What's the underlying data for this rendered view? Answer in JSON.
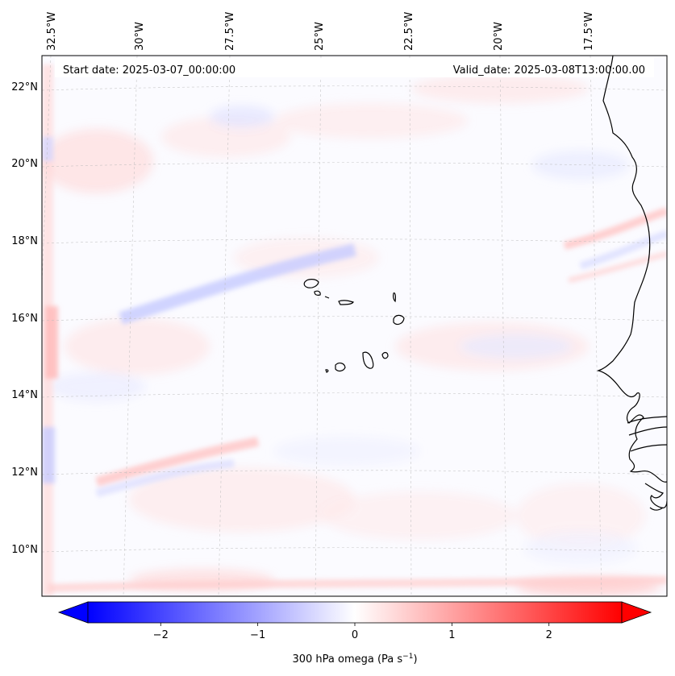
{
  "map": {
    "start_date_text": "Start date: 2025-03-07_00:00:00",
    "valid_date_text": "Valid_date: 2025-03-08T13:00:00.00",
    "lon_labels": [
      "32.5°W",
      "30°W",
      "27.5°W",
      "25°W",
      "22.5°W",
      "20°W",
      "17.5°W"
    ],
    "lat_labels": [
      "22°N",
      "20°N",
      "18°N",
      "16°N",
      "14°N",
      "12°N",
      "10°N"
    ],
    "lon_extent": [
      -33.0,
      -15.5
    ],
    "lat_extent": [
      8.9,
      22.8
    ],
    "field_name": "300 hPa omega",
    "coastline_color": "#000000",
    "gridline_color": "#bbbbbb"
  },
  "colorbar": {
    "label_main": "300 hPa omega (Pa s",
    "label_sup": "−1",
    "label_close": ")",
    "ticks": [
      "−2",
      "−1",
      "0",
      "1",
      "2"
    ],
    "tick_values": [
      -2,
      -1,
      0,
      1,
      2
    ],
    "range": [
      -2.75,
      2.75
    ],
    "colormap": "bwr",
    "color_low": "#0000ff",
    "color_mid": "#ffffff",
    "color_high": "#ff0000",
    "extend": "both"
  }
}
